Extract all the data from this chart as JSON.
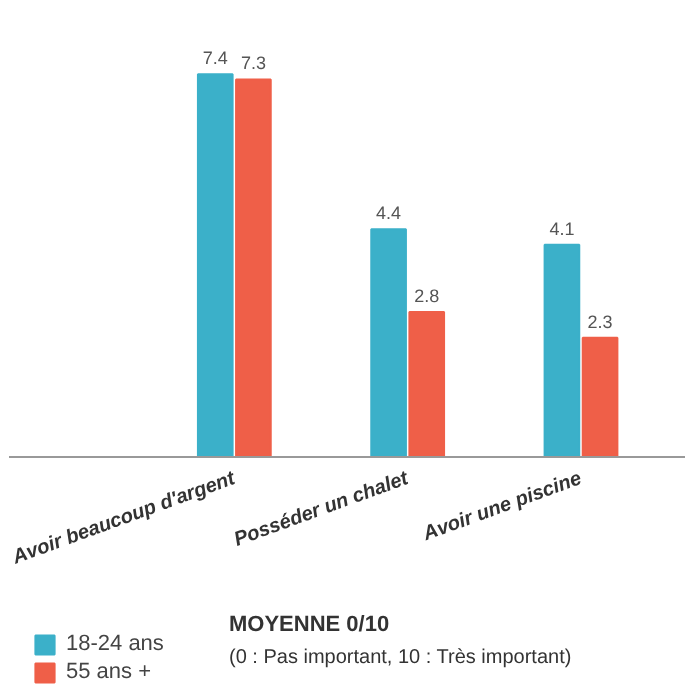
{
  "chart_data": {
    "type": "bar",
    "categories": [
      "Avoir beaucoup d'argent",
      "Posséder un chalet",
      "Avoir une piscine"
    ],
    "series": [
      {
        "name": "18-24 ans",
        "color": "#3bb0c9",
        "values": [
          7.4,
          4.4,
          4.1
        ]
      },
      {
        "name": "55 ans +",
        "color": "#ef5f48",
        "values": [
          7.3,
          2.8,
          2.3
        ]
      }
    ],
    "data_labels": true,
    "legend": "bottom left",
    "grid": false,
    "annotations": [
      "MOYENNE 0/10",
      "(0 : Pas important, 10 : Très important)"
    ]
  }
}
